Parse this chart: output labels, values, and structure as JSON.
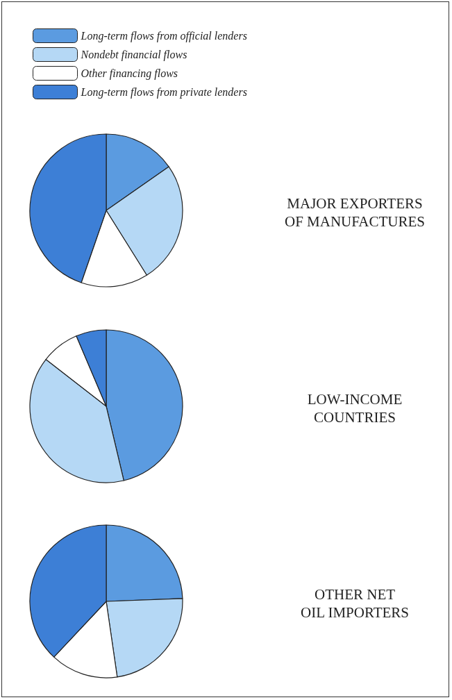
{
  "chart_data": [
    {
      "type": "pie",
      "title": "MAJOR EXPORTERS\nOF MANUFACTURES",
      "legend": "top",
      "categories": [
        "Long-term flows from official lenders",
        "Nondebt financial flows",
        "Other financing flows",
        "Long-term flows from private lenders"
      ],
      "values": [
        15.3,
        25.8,
        14.2,
        44.7
      ],
      "colors": [
        "#5b9be0",
        "#b5d8f5",
        "#ffffff",
        "#3d7fd6"
      ]
    },
    {
      "type": "pie",
      "title": "LOW-INCOME\nCOUNTRIES",
      "categories": [
        null,
        null,
        null,
        null
      ],
      "values": [
        46.3,
        39.2,
        8.1,
        6.4
      ],
      "colors": [
        "#5b9be0",
        "#b5d8f5",
        "#ffffff",
        "#3d7fd6"
      ]
    },
    {
      "type": "pie",
      "title": "OTHER NET\nOIL IMPORTERS",
      "categories": [
        null,
        null,
        null,
        null
      ],
      "values": [
        24.4,
        23.3,
        14.3,
        38.0
      ],
      "colors": [
        "#5b9be0",
        "#b5d8f5",
        "#ffffff",
        "#3d7fd6"
      ]
    }
  ]
}
